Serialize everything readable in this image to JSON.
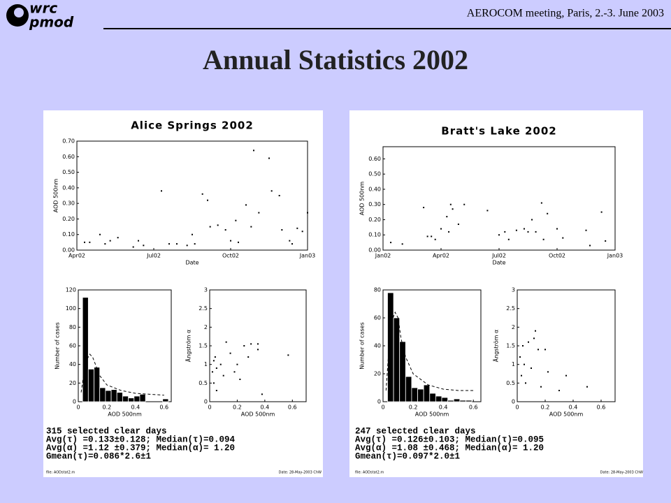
{
  "header": {
    "logo_top": "wrc",
    "logo_bottom": "pmod",
    "meeting": "AEROCOM meeting, Paris, 2.-3. June 2003"
  },
  "title": "Annual Statistics 2002",
  "chart_data": [
    {
      "type": "scatter",
      "title": "Alice Springs 2002",
      "xlabel": "Date",
      "ylabel": "AOD 500nm",
      "color": "#000000",
      "x": [
        3.3,
        3.5,
        3.9,
        4.1,
        4.3,
        4.6,
        5.2,
        5.4,
        5.6,
        6.3,
        6.6,
        6.9,
        7.3,
        7.5,
        7.6,
        7.9,
        8.1,
        8.2,
        8.5,
        8.8,
        9.0,
        9.2,
        9.3,
        9.6,
        9.8,
        9.9,
        10.1,
        10.5,
        10.6,
        10.9,
        11.0,
        11.3,
        11.4,
        11.6,
        11.8,
        12.0
      ],
      "values": [
        0.05,
        0.05,
        0.1,
        0.04,
        0.06,
        0.08,
        0.02,
        0.06,
        0.03,
        0.38,
        0.04,
        0.04,
        0.03,
        0.1,
        0.04,
        0.36,
        0.32,
        0.15,
        0.16,
        0.13,
        0.06,
        0.19,
        0.05,
        0.29,
        0.15,
        0.64,
        0.24,
        0.59,
        0.38,
        0.35,
        0.13,
        0.06,
        0.04,
        0.14,
        0.12,
        0.24
      ],
      "xlim": [
        3,
        12
      ],
      "xticks": [
        {
          "value": 3,
          "label": "Apr02"
        },
        {
          "value": 6,
          "label": "Jul02"
        },
        {
          "value": 9,
          "label": "Oct02"
        },
        {
          "value": 12,
          "label": "Jan03"
        }
      ],
      "ylim": [
        0,
        0.7
      ],
      "yticks": [
        {
          "value": 0,
          "label": "0.00"
        },
        {
          "value": 0.1,
          "label": "0.10"
        },
        {
          "value": 0.2,
          "label": "0.20"
        },
        {
          "value": 0.3,
          "label": "0.30"
        },
        {
          "value": 0.4,
          "label": "0.40"
        },
        {
          "value": 0.5,
          "label": "0.50"
        },
        {
          "value": 0.6,
          "label": "0.60"
        },
        {
          "value": 0.7,
          "label": "0.70"
        }
      ]
    },
    {
      "type": "histogram",
      "xlabel": "AOD 500nm",
      "ylabel": "Number of cases",
      "color": "#000000",
      "bins": [
        0.03,
        0.07,
        0.11,
        0.15,
        0.19,
        0.23,
        0.27,
        0.31,
        0.35,
        0.39,
        0.43,
        0.47,
        0.51,
        0.55,
        0.59,
        0.63
      ],
      "values": [
        112,
        35,
        37,
        15,
        12,
        13,
        10,
        6,
        4,
        6,
        8,
        0,
        0,
        0,
        3
      ],
      "curve": {
        "x": [
          0.02,
          0.05,
          0.08,
          0.1,
          0.15,
          0.2,
          0.3,
          0.4,
          0.5,
          0.6
        ],
        "values": [
          10,
          42,
          51,
          48,
          28,
          18,
          12,
          9,
          8,
          7
        ]
      },
      "xlim": [
        0,
        0.65
      ],
      "xticks": [
        0,
        0.2,
        0.4,
        0.6
      ],
      "ylim": [
        0,
        120
      ],
      "yticks": [
        0,
        20,
        40,
        60,
        80,
        100,
        120
      ]
    },
    {
      "type": "scatter",
      "xlabel": "AOD 500nm",
      "ylabel": "Ångström α",
      "color": "#000000",
      "x": [
        0.02,
        0.03,
        0.03,
        0.04,
        0.05,
        0.05,
        0.08,
        0.1,
        0.12,
        0.15,
        0.18,
        0.2,
        0.22,
        0.25,
        0.28,
        0.3,
        0.35,
        0.35,
        0.38,
        0.57
      ],
      "values": [
        0.8,
        1.1,
        0.5,
        1.2,
        0.3,
        0.9,
        1.0,
        0.7,
        1.6,
        1.3,
        0.8,
        1.0,
        0.6,
        1.5,
        1.2,
        1.55,
        1.4,
        1.55,
        0.2,
        1.25
      ],
      "xlim": [
        0,
        0.7
      ],
      "xticks": [
        0,
        0.2,
        0.4,
        0.6
      ],
      "ylim": [
        0,
        3
      ],
      "yticks": [
        0,
        0.5,
        1,
        1.5,
        2,
        2.5,
        3
      ]
    },
    {
      "type": "scatter",
      "title": "Bratt's Lake 2002",
      "xlabel": "Date",
      "ylabel": "AOD 500nm",
      "color": "#000000",
      "x": [
        0.4,
        1.0,
        2.1,
        2.3,
        2.5,
        2.7,
        3.0,
        3.3,
        3.4,
        3.5,
        3.6,
        3.9,
        4.2,
        5.4,
        6.0,
        6.3,
        6.5,
        6.9,
        7.3,
        7.5,
        7.7,
        7.9,
        8.2,
        8.3,
        8.5,
        9.0,
        9.3,
        10.5,
        10.7,
        11.3,
        11.5
      ],
      "values": [
        0.05,
        0.04,
        0.28,
        0.09,
        0.09,
        0.07,
        0.14,
        0.22,
        0.12,
        0.3,
        0.27,
        0.17,
        0.3,
        0.26,
        0.1,
        0.12,
        0.07,
        0.13,
        0.14,
        0.12,
        0.2,
        0.12,
        0.31,
        0.07,
        0.24,
        0.14,
        0.08,
        0.13,
        0.03,
        0.25,
        0.06
      ],
      "xlim": [
        0,
        12
      ],
      "xticks": [
        {
          "value": 0,
          "label": "Jan02"
        },
        {
          "value": 3,
          "label": "Apr02"
        },
        {
          "value": 6,
          "label": "Jul02"
        },
        {
          "value": 9,
          "label": "Oct02"
        },
        {
          "value": 12,
          "label": "Jan03"
        }
      ],
      "ylim": [
        0,
        0.68
      ],
      "yticks": [
        {
          "value": 0,
          "label": "0.00"
        },
        {
          "value": 0.1,
          "label": "0.10"
        },
        {
          "value": 0.2,
          "label": "0.20"
        },
        {
          "value": 0.3,
          "label": "0.30"
        },
        {
          "value": 0.4,
          "label": "0.40"
        },
        {
          "value": 0.5,
          "label": "0.50"
        },
        {
          "value": 0.6,
          "label": "0.60"
        }
      ]
    },
    {
      "type": "histogram",
      "xlabel": "AOD 500nm",
      "ylabel": "Number of cases",
      "color": "#000000",
      "bins": [
        0.03,
        0.07,
        0.11,
        0.15,
        0.19,
        0.23,
        0.27,
        0.31,
        0.35,
        0.39,
        0.43,
        0.47,
        0.51,
        0.55,
        0.59
      ],
      "values": [
        78,
        60,
        43,
        18,
        10,
        9,
        12,
        6,
        4,
        3,
        1,
        2,
        1,
        1
      ],
      "curve": {
        "x": [
          0.02,
          0.05,
          0.08,
          0.1,
          0.12,
          0.15,
          0.2,
          0.3,
          0.4,
          0.5,
          0.6
        ],
        "values": [
          8,
          55,
          64,
          60,
          45,
          32,
          20,
          12,
          9,
          8,
          8
        ]
      },
      "xlim": [
        0,
        0.65
      ],
      "xticks": [
        0,
        0.2,
        0.4,
        0.6
      ],
      "ylim": [
        0,
        80
      ],
      "yticks": [
        0,
        20,
        40,
        60,
        80
      ]
    },
    {
      "type": "scatter",
      "xlabel": "AOD 500nm",
      "ylabel": "Ångström α",
      "color": "#000000",
      "x": [
        0.02,
        0.03,
        0.04,
        0.05,
        0.06,
        0.08,
        0.1,
        0.12,
        0.13,
        0.15,
        0.17,
        0.2,
        0.22,
        0.3,
        0.35,
        0.5
      ],
      "values": [
        1.2,
        0.7,
        1.5,
        1.0,
        0.5,
        1.6,
        0.9,
        1.7,
        1.9,
        1.4,
        0.4,
        1.4,
        0.8,
        0.3,
        0.7,
        0.4
      ],
      "xlim": [
        0,
        0.7
      ],
      "xticks": [
        0,
        0.2,
        0.4,
        0.6
      ],
      "ylim": [
        0,
        3
      ],
      "yticks": [
        0,
        0.5,
        1,
        1.5,
        2,
        2.5,
        3
      ]
    }
  ],
  "stats": [
    {
      "lines": [
        "315 selected clear days",
        "Avg(τ) =0.133±0.128; Median(τ)=0.094",
        "Avg(α) =1.12 ±0.379; Median(α)= 1.20",
        "Gmean(τ)=0.086*2.6±1"
      ],
      "file": "file: AODstat2.m",
      "date": "Date: 28-May-2003 ChW"
    },
    {
      "lines": [
        "247 selected clear days",
        "Avg(τ) =0.126±0.103; Median(τ)=0.095",
        "Avg(α) =1.08 ±0.468; Median(α)= 1.20",
        "Gmean(τ)=0.097*2.0±1"
      ],
      "file": "file: AODstat2.m",
      "date": "Date: 28-May-2003 ChW"
    }
  ]
}
